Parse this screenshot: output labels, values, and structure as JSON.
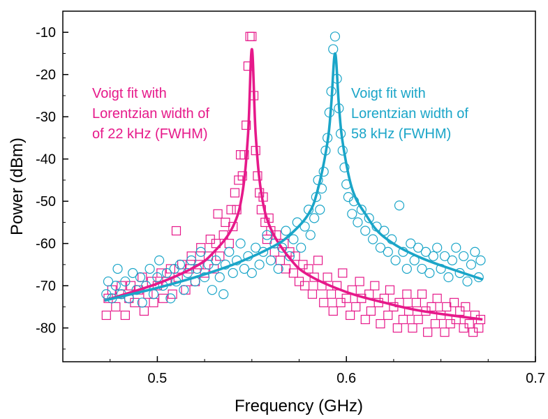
{
  "chart_data": {
    "type": "scatter",
    "xlabel": "Frequency (GHz)",
    "ylabel": "Power (dBm)",
    "xlim": [
      0.45,
      0.7
    ],
    "ylim": [
      -88,
      -5
    ],
    "x_ticks": [
      "0.5",
      "0.6",
      "0.7"
    ],
    "x_tick_values": [
      0.5,
      0.6,
      0.7
    ],
    "y_ticks": [
      "-10",
      "-20",
      "-30",
      "-40",
      "-50",
      "-60",
      "-70",
      "-80"
    ],
    "y_tick_values": [
      -10,
      -20,
      -30,
      -40,
      -50,
      -60,
      -70,
      -80
    ],
    "grid": false,
    "annotations": [
      {
        "lines": [
          "Voigt fit with",
          "Lorentzian width of",
          "of 22 kHz (FWHM)"
        ],
        "color": "#E6198A",
        "series": "pink"
      },
      {
        "lines": [
          "Voigt fit with",
          "Lorentzian width of",
          "58 kHz (FWHM)"
        ],
        "color": "#1AA5C8",
        "series": "blue"
      }
    ],
    "series": [
      {
        "id": "pink",
        "color": "#E6198A",
        "marker": "square",
        "fit": {
          "center": 0.55,
          "peak": -14,
          "x_range": [
            0.472,
            0.672
          ],
          "x": [
            0.472,
            0.5,
            0.52,
            0.53,
            0.54,
            0.545,
            0.548,
            0.55,
            0.552,
            0.555,
            0.56,
            0.57,
            0.58,
            0.6,
            0.62,
            0.64,
            0.672
          ],
          "y": [
            -73.5,
            -69.5,
            -65.5,
            -62,
            -56,
            -48,
            -34,
            -14,
            -34,
            -48,
            -56.5,
            -63.5,
            -67.5,
            -71.5,
            -74,
            -76,
            -78
          ]
        },
        "points": [
          [
            0.473,
            -77
          ],
          [
            0.474,
            -73
          ],
          [
            0.476,
            -71
          ],
          [
            0.478,
            -75
          ],
          [
            0.48,
            -72
          ],
          [
            0.481,
            -70
          ],
          [
            0.483,
            -77
          ],
          [
            0.485,
            -73
          ],
          [
            0.486,
            -70
          ],
          [
            0.488,
            -74
          ],
          [
            0.49,
            -71
          ],
          [
            0.492,
            -68
          ],
          [
            0.493,
            -76
          ],
          [
            0.495,
            -72
          ],
          [
            0.497,
            -69
          ],
          [
            0.498,
            -74
          ],
          [
            0.5,
            -70
          ],
          [
            0.502,
            -67
          ],
          [
            0.503,
            -73
          ],
          [
            0.505,
            -69
          ],
          [
            0.507,
            -66
          ],
          [
            0.508,
            -72
          ],
          [
            0.51,
            -57
          ],
          [
            0.511,
            -68
          ],
          [
            0.513,
            -65
          ],
          [
            0.515,
            -71
          ],
          [
            0.517,
            -66
          ],
          [
            0.518,
            -63
          ],
          [
            0.52,
            -69
          ],
          [
            0.522,
            -65
          ],
          [
            0.523,
            -61
          ],
          [
            0.525,
            -67
          ],
          [
            0.527,
            -63
          ],
          [
            0.528,
            -59
          ],
          [
            0.53,
            -66
          ],
          [
            0.531,
            -60
          ],
          [
            0.532,
            -53
          ],
          [
            0.533,
            -63
          ],
          [
            0.535,
            -58
          ],
          [
            0.536,
            -55
          ],
          [
            0.538,
            -60
          ],
          [
            0.539,
            -52
          ],
          [
            0.54,
            -56
          ],
          [
            0.541,
            -48
          ],
          [
            0.542,
            -52
          ],
          [
            0.543,
            -45
          ],
          [
            0.544,
            -39
          ],
          [
            0.545,
            -44
          ],
          [
            0.546,
            -39
          ],
          [
            0.547,
            -32
          ],
          [
            0.548,
            -18
          ],
          [
            0.549,
            -11
          ],
          [
            0.55,
            -11
          ],
          [
            0.551,
            -25
          ],
          [
            0.552,
            -38
          ],
          [
            0.553,
            -44
          ],
          [
            0.554,
            -48
          ],
          [
            0.555,
            -52
          ],
          [
            0.556,
            -49
          ],
          [
            0.557,
            -55
          ],
          [
            0.558,
            -59
          ],
          [
            0.559,
            -54
          ],
          [
            0.56,
            -57
          ],
          [
            0.562,
            -62
          ],
          [
            0.563,
            -58
          ],
          [
            0.565,
            -64
          ],
          [
            0.567,
            -60
          ],
          [
            0.568,
            -66
          ],
          [
            0.57,
            -62
          ],
          [
            0.572,
            -67
          ],
          [
            0.573,
            -63
          ],
          [
            0.575,
            -69
          ],
          [
            0.577,
            -65
          ],
          [
            0.578,
            -70
          ],
          [
            0.58,
            -66
          ],
          [
            0.582,
            -72
          ],
          [
            0.583,
            -68
          ],
          [
            0.585,
            -64
          ],
          [
            0.587,
            -70
          ],
          [
            0.588,
            -74
          ],
          [
            0.59,
            -68
          ],
          [
            0.592,
            -72
          ],
          [
            0.593,
            -76
          ],
          [
            0.595,
            -70
          ],
          [
            0.597,
            -74
          ],
          [
            0.598,
            -67
          ],
          [
            0.6,
            -73
          ],
          [
            0.602,
            -77
          ],
          [
            0.603,
            -71
          ],
          [
            0.605,
            -75
          ],
          [
            0.607,
            -69
          ],
          [
            0.608,
            -73
          ],
          [
            0.61,
            -78
          ],
          [
            0.612,
            -72
          ],
          [
            0.613,
            -76
          ],
          [
            0.615,
            -70
          ],
          [
            0.617,
            -74
          ],
          [
            0.618,
            -79
          ],
          [
            0.62,
            -73
          ],
          [
            0.622,
            -77
          ],
          [
            0.623,
            -71
          ],
          [
            0.625,
            -75
          ],
          [
            0.627,
            -80
          ],
          [
            0.628,
            -74
          ],
          [
            0.63,
            -78
          ],
          [
            0.632,
            -72
          ],
          [
            0.633,
            -76
          ],
          [
            0.635,
            -80
          ],
          [
            0.637,
            -74
          ],
          [
            0.638,
            -78
          ],
          [
            0.64,
            -72
          ],
          [
            0.642,
            -76
          ],
          [
            0.643,
            -81
          ],
          [
            0.645,
            -75
          ],
          [
            0.647,
            -79
          ],
          [
            0.648,
            -73
          ],
          [
            0.65,
            -77
          ],
          [
            0.652,
            -81
          ],
          [
            0.653,
            -75
          ],
          [
            0.655,
            -79
          ],
          [
            0.657,
            -74
          ],
          [
            0.658,
            -78
          ],
          [
            0.66,
            -76
          ],
          [
            0.662,
            -80
          ],
          [
            0.663,
            -75
          ],
          [
            0.665,
            -79
          ],
          [
            0.667,
            -81
          ],
          [
            0.668,
            -77
          ],
          [
            0.67,
            -80
          ],
          [
            0.671,
            -78
          ]
        ]
      },
      {
        "id": "blue",
        "color": "#1AA5C8",
        "marker": "circle",
        "fit": {
          "center": 0.594,
          "peak": -15,
          "x_range": [
            0.472,
            0.672
          ],
          "x": [
            0.472,
            0.5,
            0.52,
            0.54,
            0.56,
            0.57,
            0.58,
            0.585,
            0.59,
            0.592,
            0.594,
            0.596,
            0.598,
            0.603,
            0.61,
            0.62,
            0.64,
            0.672
          ],
          "y": [
            -73.5,
            -70.5,
            -68,
            -65,
            -61,
            -58,
            -53,
            -47,
            -36,
            -27,
            -15,
            -27,
            -36,
            -47,
            -53,
            -58.5,
            -63.5,
            -68.5
          ]
        },
        "points": [
          [
            0.473,
            -72
          ],
          [
            0.474,
            -69
          ],
          [
            0.476,
            -73
          ],
          [
            0.478,
            -70
          ],
          [
            0.479,
            -66
          ],
          [
            0.481,
            -72
          ],
          [
            0.483,
            -69
          ],
          [
            0.485,
            -73
          ],
          [
            0.487,
            -67
          ],
          [
            0.489,
            -71
          ],
          [
            0.491,
            -68
          ],
          [
            0.492,
            -74
          ],
          [
            0.494,
            -70
          ],
          [
            0.496,
            -66
          ],
          [
            0.498,
            -72
          ],
          [
            0.5,
            -68
          ],
          [
            0.501,
            -64
          ],
          [
            0.503,
            -70
          ],
          [
            0.505,
            -67
          ],
          [
            0.507,
            -73
          ],
          [
            0.509,
            -66
          ],
          [
            0.51,
            -69
          ],
          [
            0.512,
            -65
          ],
          [
            0.514,
            -71
          ],
          [
            0.516,
            -67
          ],
          [
            0.518,
            -64
          ],
          [
            0.52,
            -69
          ],
          [
            0.521,
            -66
          ],
          [
            0.523,
            -62
          ],
          [
            0.525,
            -68
          ],
          [
            0.527,
            -65
          ],
          [
            0.529,
            -71
          ],
          [
            0.531,
            -64
          ],
          [
            0.533,
            -68
          ],
          [
            0.535,
            -72
          ],
          [
            0.536,
            -65
          ],
          [
            0.538,
            -62
          ],
          [
            0.54,
            -67
          ],
          [
            0.542,
            -64
          ],
          [
            0.544,
            -60
          ],
          [
            0.546,
            -66
          ],
          [
            0.548,
            -63
          ],
          [
            0.55,
            -67
          ],
          [
            0.552,
            -61
          ],
          [
            0.554,
            -65
          ],
          [
            0.556,
            -62
          ],
          [
            0.558,
            -58
          ],
          [
            0.56,
            -64
          ],
          [
            0.562,
            -60
          ],
          [
            0.564,
            -66
          ],
          [
            0.566,
            -61
          ],
          [
            0.568,
            -57
          ],
          [
            0.57,
            -63
          ],
          [
            0.572,
            -59
          ],
          [
            0.574,
            -55
          ],
          [
            0.576,
            -61
          ],
          [
            0.578,
            -56
          ],
          [
            0.58,
            -52
          ],
          [
            0.581,
            -58
          ],
          [
            0.583,
            -54
          ],
          [
            0.584,
            -49
          ],
          [
            0.585,
            -45
          ],
          [
            0.586,
            -52
          ],
          [
            0.587,
            -47
          ],
          [
            0.588,
            -43
          ],
          [
            0.589,
            -38
          ],
          [
            0.59,
            -35
          ],
          [
            0.591,
            -29
          ],
          [
            0.592,
            -24
          ],
          [
            0.593,
            -14
          ],
          [
            0.594,
            -11
          ],
          [
            0.595,
            -21
          ],
          [
            0.596,
            -28
          ],
          [
            0.597,
            -34
          ],
          [
            0.598,
            -38
          ],
          [
            0.599,
            -42
          ],
          [
            0.6,
            -46
          ],
          [
            0.601,
            -49
          ],
          [
            0.603,
            -53
          ],
          [
            0.604,
            -50
          ],
          [
            0.606,
            -55
          ],
          [
            0.608,
            -52
          ],
          [
            0.61,
            -57
          ],
          [
            0.612,
            -54
          ],
          [
            0.614,
            -59
          ],
          [
            0.616,
            -56
          ],
          [
            0.618,
            -61
          ],
          [
            0.62,
            -57
          ],
          [
            0.622,
            -62
          ],
          [
            0.624,
            -59
          ],
          [
            0.626,
            -64
          ],
          [
            0.628,
            -51
          ],
          [
            0.63,
            -62
          ],
          [
            0.632,
            -66
          ],
          [
            0.634,
            -60
          ],
          [
            0.636,
            -64
          ],
          [
            0.638,
            -61
          ],
          [
            0.64,
            -66
          ],
          [
            0.642,
            -62
          ],
          [
            0.644,
            -67
          ],
          [
            0.646,
            -63
          ],
          [
            0.648,
            -61
          ],
          [
            0.65,
            -66
          ],
          [
            0.652,
            -63
          ],
          [
            0.654,
            -68
          ],
          [
            0.656,
            -64
          ],
          [
            0.658,
            -61
          ],
          [
            0.66,
            -67
          ],
          [
            0.662,
            -63
          ],
          [
            0.664,
            -69
          ],
          [
            0.666,
            -65
          ],
          [
            0.668,
            -62
          ],
          [
            0.67,
            -68
          ],
          [
            0.671,
            -64
          ]
        ]
      }
    ]
  }
}
